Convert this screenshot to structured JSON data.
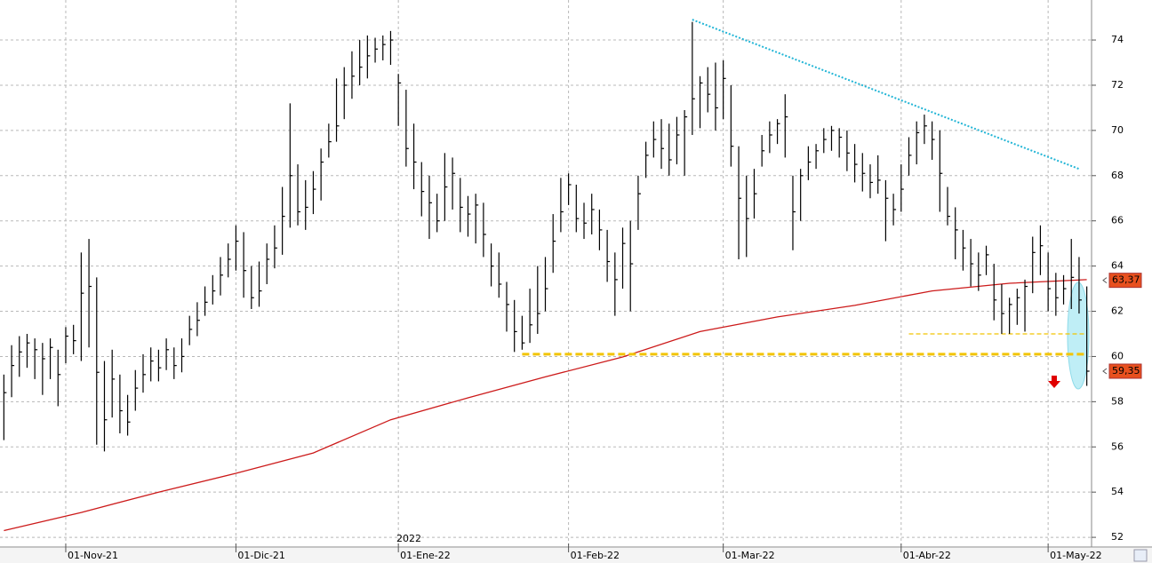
{
  "chart_data": {
    "type": "ohlc",
    "annotation": "2022",
    "categories": [
      null,
      null,
      null,
      null,
      null,
      null,
      null,
      null,
      "01-Nov-21",
      null,
      null,
      null,
      null,
      null,
      null,
      null,
      null,
      null,
      null,
      null,
      null,
      null,
      null,
      null,
      null,
      null,
      null,
      null,
      null,
      null,
      "01-Dic-21",
      null,
      null,
      null,
      null,
      null,
      null,
      null,
      null,
      null,
      null,
      null,
      null,
      null,
      null,
      null,
      null,
      null,
      null,
      null,
      null,
      "01-Ene-22",
      null,
      null,
      null,
      null,
      null,
      null,
      null,
      null,
      null,
      null,
      null,
      null,
      null,
      null,
      null,
      null,
      null,
      null,
      null,
      null,
      null,
      "01-Feb-22",
      null,
      null,
      null,
      null,
      null,
      null,
      null,
      null,
      null,
      null,
      null,
      null,
      null,
      null,
      null,
      null,
      null,
      null,
      null,
      "01-Mar-22",
      null,
      null,
      null,
      null,
      null,
      null,
      null,
      null,
      null,
      null,
      null,
      null,
      null,
      null,
      null,
      null,
      null,
      null,
      null,
      null,
      null,
      null,
      "01-Abr-22",
      null,
      null,
      null,
      null,
      null,
      null,
      null,
      null,
      null,
      null,
      null,
      null,
      null,
      null,
      null,
      null,
      null,
      null,
      "01-May-22",
      null,
      null,
      null,
      null,
      null
    ],
    "high": [
      59.2,
      60.5,
      60.9,
      61.0,
      60.8,
      60.6,
      60.8,
      60.3,
      61.3,
      61.4,
      64.6,
      65.2,
      63.5,
      59.8,
      60.3,
      59.2,
      58.3,
      59.4,
      60.1,
      60.4,
      60.3,
      60.8,
      60.4,
      60.8,
      61.8,
      62.4,
      63.1,
      63.6,
      64.4,
      65.0,
      65.8,
      65.5,
      64.0,
      64.2,
      65.0,
      65.8,
      67.5,
      71.2,
      68.5,
      67.8,
      68.2,
      69.2,
      70.3,
      72.3,
      72.8,
      73.5,
      74.0,
      74.2,
      74.1,
      74.2,
      74.4,
      72.5,
      71.8,
      70.3,
      68.6,
      68.0,
      67.2,
      69.0,
      68.8,
      67.9,
      67.1,
      67.2,
      66.8,
      65.0,
      64.6,
      63.3,
      62.5,
      61.8,
      63.0,
      64.0,
      64.4,
      66.3,
      67.9,
      68.1,
      67.6,
      66.8,
      67.2,
      66.5,
      65.6,
      64.6,
      65.7,
      66.0,
      68.0,
      69.5,
      70.4,
      70.5,
      70.3,
      70.6,
      70.9,
      74.8,
      72.4,
      72.8,
      73.0,
      73.1,
      72.0,
      69.3,
      68.0,
      68.3,
      69.8,
      70.4,
      70.5,
      71.6,
      68.0,
      68.3,
      69.3,
      69.4,
      70.1,
      70.2,
      70.1,
      70.0,
      69.4,
      69.0,
      68.5,
      68.9,
      67.8,
      67.2,
      68.5,
      69.7,
      70.4,
      70.7,
      70.4,
      70.0,
      67.5,
      66.6,
      65.6,
      65.2,
      64.6,
      64.9,
      64.1,
      63.2,
      62.6,
      63.0,
      63.4,
      65.3,
      65.8,
      64.6,
      63.7,
      63.6,
      65.2,
      64.4,
      63.1
    ],
    "low": [
      56.3,
      58.2,
      59.1,
      59.5,
      59.0,
      58.3,
      59.0,
      57.8,
      59.7,
      60.1,
      59.8,
      60.4,
      56.1,
      55.8,
      57.3,
      56.6,
      56.5,
      57.6,
      58.4,
      58.9,
      58.9,
      59.4,
      59.0,
      59.3,
      60.5,
      60.9,
      61.8,
      62.3,
      62.7,
      63.5,
      63.8,
      62.6,
      62.1,
      62.2,
      63.2,
      63.9,
      64.5,
      65.7,
      65.8,
      65.6,
      66.3,
      66.9,
      68.8,
      69.5,
      70.5,
      71.4,
      72.0,
      72.3,
      73.0,
      73.1,
      72.9,
      70.2,
      68.4,
      67.4,
      66.2,
      65.2,
      65.5,
      66.0,
      66.5,
      65.5,
      65.3,
      65.0,
      64.4,
      63.1,
      62.6,
      61.1,
      60.2,
      60.3,
      60.6,
      61.0,
      62.0,
      63.7,
      65.5,
      66.7,
      65.5,
      65.2,
      65.4,
      64.7,
      63.3,
      61.8,
      63.0,
      62.0,
      65.6,
      67.9,
      68.8,
      68.3,
      68.0,
      68.5,
      68.0,
      69.8,
      70.1,
      70.8,
      70.0,
      70.5,
      68.4,
      64.3,
      64.4,
      66.1,
      68.4,
      69.0,
      69.4,
      68.8,
      64.7,
      66.0,
      67.8,
      68.3,
      69.0,
      69.1,
      68.8,
      68.2,
      67.7,
      67.3,
      67.0,
      67.2,
      65.1,
      65.8,
      66.4,
      68.0,
      68.5,
      69.4,
      68.7,
      66.4,
      65.8,
      64.3,
      63.8,
      63.1,
      62.9,
      63.6,
      61.6,
      61.0,
      61.0,
      61.4,
      61.1,
      62.8,
      63.6,
      62.0,
      61.8,
      62.3,
      62.1,
      61.9,
      58.7
    ],
    "close": [
      58.4,
      59.6,
      60.2,
      60.6,
      60.3,
      59.9,
      60.4,
      59.2,
      60.9,
      60.7,
      62.8,
      63.1,
      59.3,
      57.2,
      59.0,
      57.6,
      57.1,
      58.6,
      59.2,
      59.8,
      59.5,
      60.3,
      59.6,
      60.0,
      61.2,
      61.6,
      62.4,
      62.9,
      63.6,
      64.3,
      65.1,
      63.8,
      62.6,
      62.9,
      64.3,
      64.8,
      66.2,
      68.0,
      66.4,
      66.6,
      67.4,
      68.6,
      69.5,
      70.2,
      72.0,
      72.4,
      72.8,
      73.3,
      73.6,
      73.8,
      74.0,
      72.1,
      69.2,
      68.6,
      67.3,
      66.8,
      66.0,
      67.5,
      68.1,
      66.6,
      66.3,
      66.7,
      65.4,
      64.0,
      63.2,
      62.3,
      61.1,
      60.6,
      61.4,
      61.9,
      63.0,
      65.1,
      66.4,
      67.6,
      66.1,
      65.9,
      66.5,
      65.6,
      64.2,
      63.4,
      65.0,
      64.1,
      67.2,
      68.9,
      69.6,
      69.2,
      68.7,
      69.8,
      70.6,
      71.4,
      72.1,
      71.6,
      71.0,
      72.3,
      69.3,
      67.0,
      66.1,
      67.2,
      69.1,
      69.8,
      70.3,
      70.6,
      66.4,
      68.0,
      68.6,
      69.1,
      69.6,
      70.0,
      69.7,
      69.0,
      68.5,
      68.1,
      67.7,
      67.8,
      67.0,
      66.5,
      67.4,
      68.9,
      69.9,
      70.2,
      69.6,
      68.1,
      66.2,
      65.6,
      64.8,
      64.1,
      63.6,
      64.5,
      62.5,
      61.9,
      62.3,
      62.6,
      63.1,
      64.6,
      64.9,
      63.0,
      62.6,
      63.0,
      63.5,
      62.5,
      59.35
    ],
    "color": "#000000",
    "moving_average": {
      "color": "#cc1a1a",
      "x": [
        0,
        10,
        20,
        30,
        40,
        50,
        60,
        70,
        80,
        90,
        100,
        110,
        120,
        130,
        140
      ],
      "values": [
        52.3,
        53.1,
        54.0,
        54.83,
        55.73,
        57.2,
        58.17,
        59.1,
        59.98,
        61.1,
        61.75,
        62.26,
        62.9,
        63.24,
        63.4
      ]
    },
    "trendline": {
      "color": "#22b5d6",
      "x": [
        89,
        139
      ],
      "values": [
        74.9,
        68.3
      ]
    },
    "support_lines": [
      {
        "color": "#f2c400",
        "x": [
          67,
          140
        ],
        "values": [
          60.1,
          60.1
        ]
      },
      {
        "color": "#f2c400",
        "x": [
          117,
          140
        ],
        "values": [
          61.0,
          61.0
        ]
      }
    ],
    "price_labels": [
      {
        "value": 63.37,
        "label": "63,37"
      },
      {
        "value": 59.35,
        "label": "59,35"
      }
    ],
    "price_label_color": "#e8501e",
    "ylim": [
      51.65,
      75.77
    ],
    "yticks": [
      52,
      54,
      56,
      58,
      60,
      62,
      64,
      66,
      68,
      70,
      72,
      74
    ],
    "grid": true
  }
}
